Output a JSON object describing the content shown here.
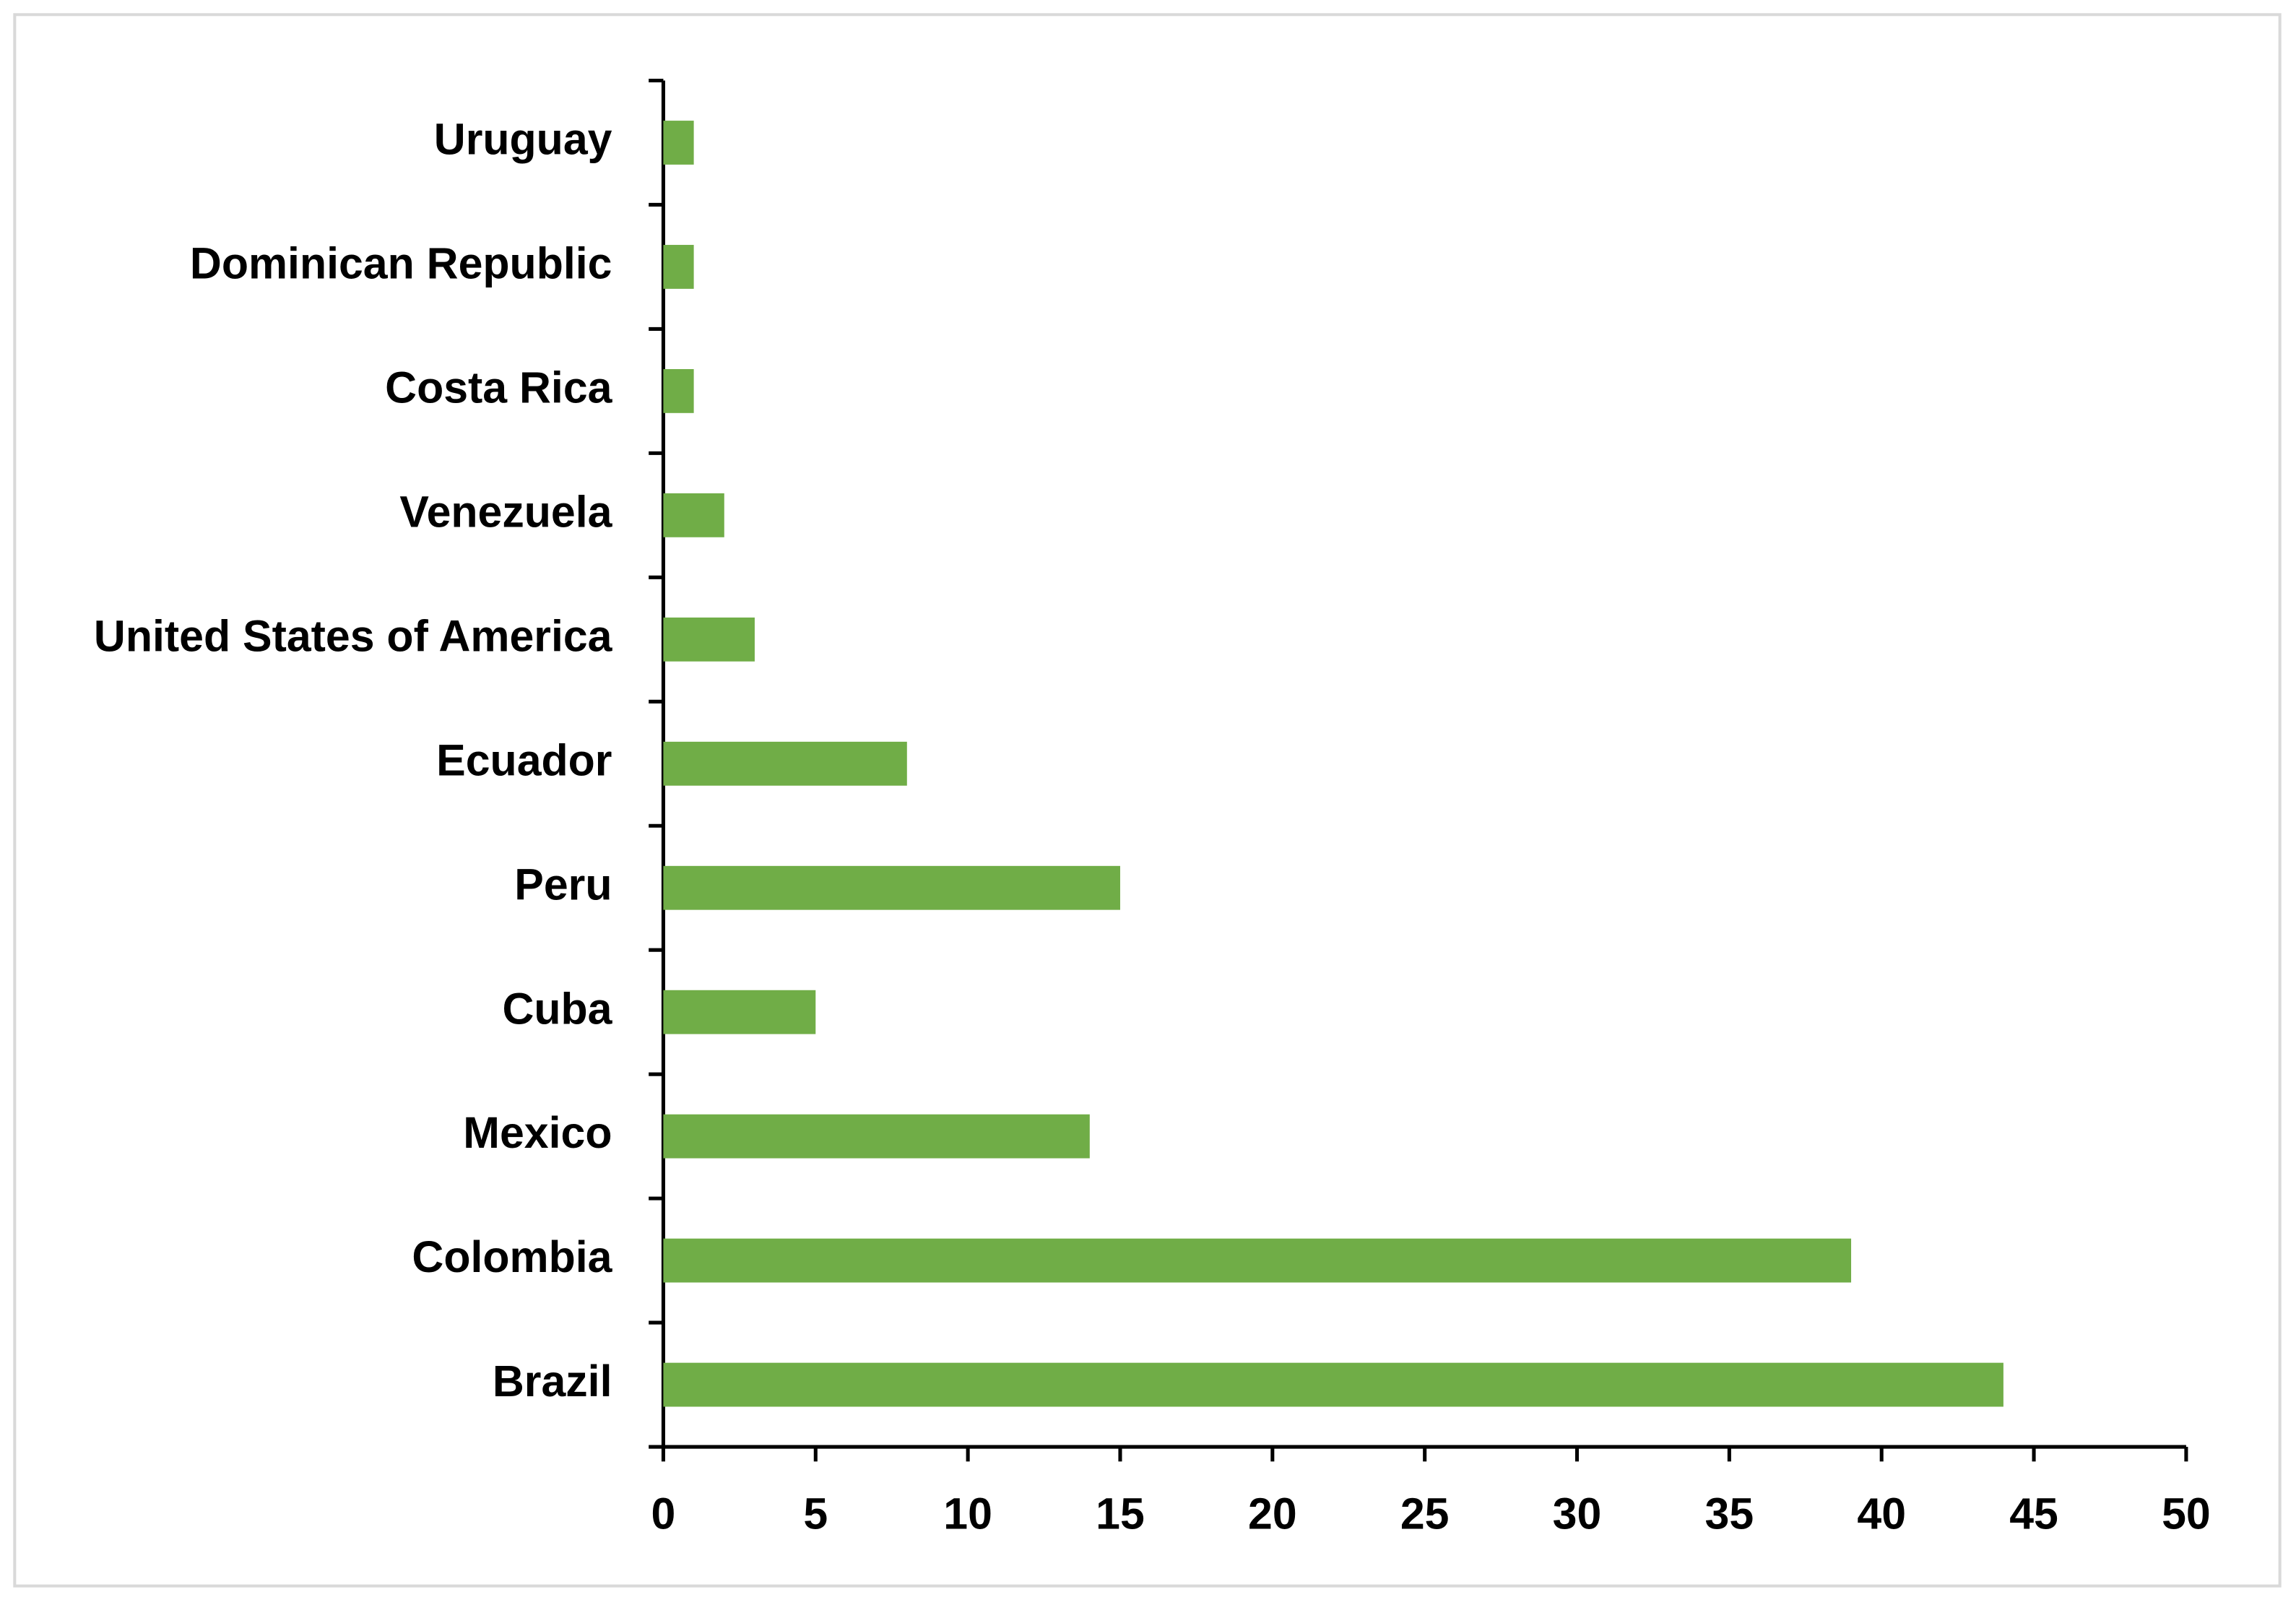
{
  "chart_data": {
    "type": "barh",
    "categories": [
      "Brazil",
      "Colombia",
      "Mexico",
      "Cuba",
      "Peru",
      "Ecuador",
      "United States of America",
      "Venezuela",
      "Costa Rica",
      "Dominican Republic",
      "Uruguay"
    ],
    "values": [
      44,
      39,
      14,
      5,
      15,
      8,
      3,
      2,
      1,
      1,
      1
    ],
    "color": "#70ad47",
    "xlim": [
      0,
      50
    ],
    "xticks": [
      0,
      5,
      10,
      15,
      20,
      25,
      30,
      35,
      40,
      45,
      50
    ],
    "grid": false
  }
}
